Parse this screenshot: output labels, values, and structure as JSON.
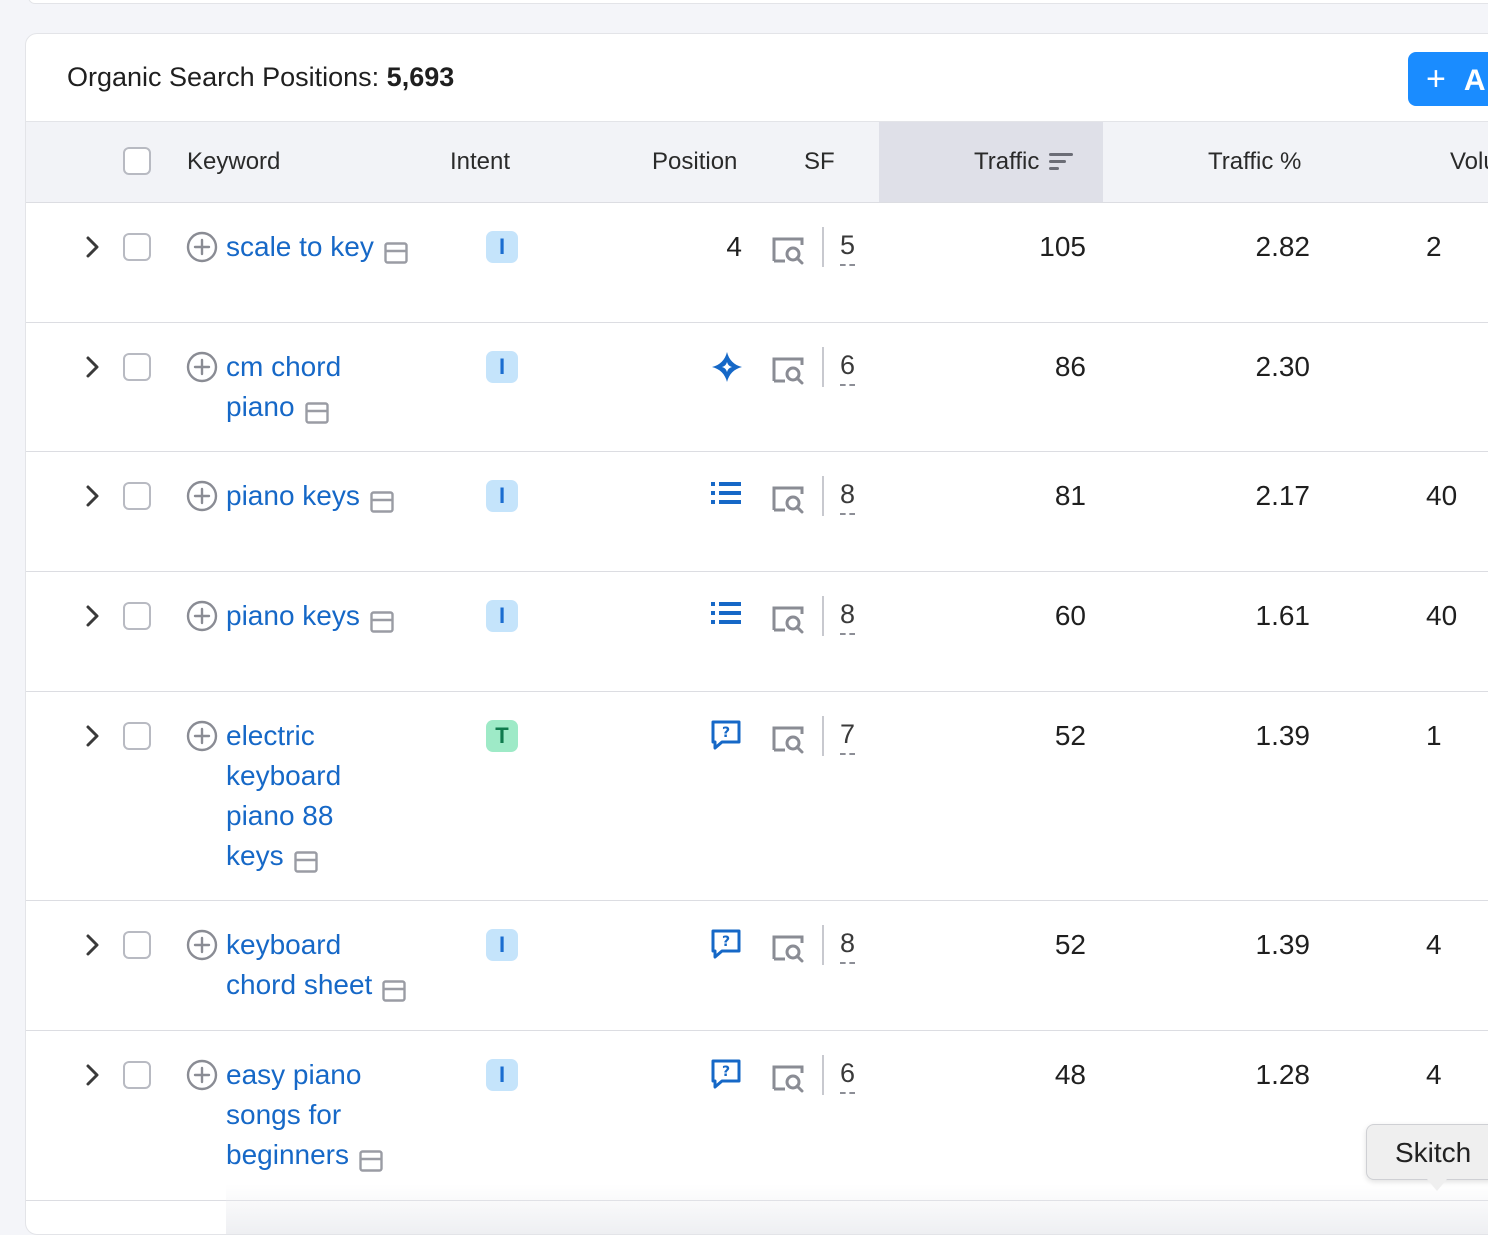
{
  "panel": {
    "title_label": "Organic Search Positions:",
    "title_count": "5,693",
    "add_button_label": "A"
  },
  "columns": {
    "keyword": "Keyword",
    "intent": "Intent",
    "position": "Position",
    "sf": "SF",
    "traffic": "Traffic",
    "traffic_pct": "Traffic %",
    "volume": "Volu"
  },
  "sorted_column": "traffic",
  "rows": [
    {
      "keyword_lines": [
        "scale to key"
      ],
      "intent": "I",
      "position": "4",
      "position_icon": "none",
      "sf": "5",
      "traffic": "105",
      "traffic_pct": "2.82",
      "volume": "2"
    },
    {
      "keyword_lines": [
        "cm chord",
        "piano"
      ],
      "intent": "I",
      "position": "",
      "position_icon": "ai-overview-icon",
      "sf": "6",
      "traffic": "86",
      "traffic_pct": "2.30",
      "volume": ""
    },
    {
      "keyword_lines": [
        "piano keys"
      ],
      "intent": "I",
      "position": "",
      "position_icon": "list-icon",
      "sf": "8",
      "traffic": "81",
      "traffic_pct": "2.17",
      "volume": "40"
    },
    {
      "keyword_lines": [
        "piano keys"
      ],
      "intent": "I",
      "position": "",
      "position_icon": "list-icon",
      "sf": "8",
      "traffic": "60",
      "traffic_pct": "1.61",
      "volume": "40"
    },
    {
      "keyword_lines": [
        "electric",
        "keyboard",
        "piano 88",
        "keys"
      ],
      "intent": "T",
      "position": "",
      "position_icon": "people-also-ask-icon",
      "sf": "7",
      "traffic": "52",
      "traffic_pct": "1.39",
      "volume": "1"
    },
    {
      "keyword_lines": [
        "keyboard",
        "chord sheet"
      ],
      "intent": "I",
      "position": "",
      "position_icon": "people-also-ask-icon",
      "sf": "8",
      "traffic": "52",
      "traffic_pct": "1.39",
      "volume": "4"
    },
    {
      "keyword_lines": [
        "easy piano",
        "songs for",
        "beginners"
      ],
      "intent": "I",
      "position": "",
      "position_icon": "people-also-ask-icon",
      "sf": "6",
      "traffic": "48",
      "traffic_pct": "1.28",
      "volume": "4"
    }
  ],
  "tooltip": {
    "label": "Skitch"
  },
  "colors": {
    "link": "#1668c7",
    "primary_button": "#1a8cff",
    "intent_informational_bg": "#c5e4fb",
    "intent_transactional_bg": "#9eeac7"
  }
}
